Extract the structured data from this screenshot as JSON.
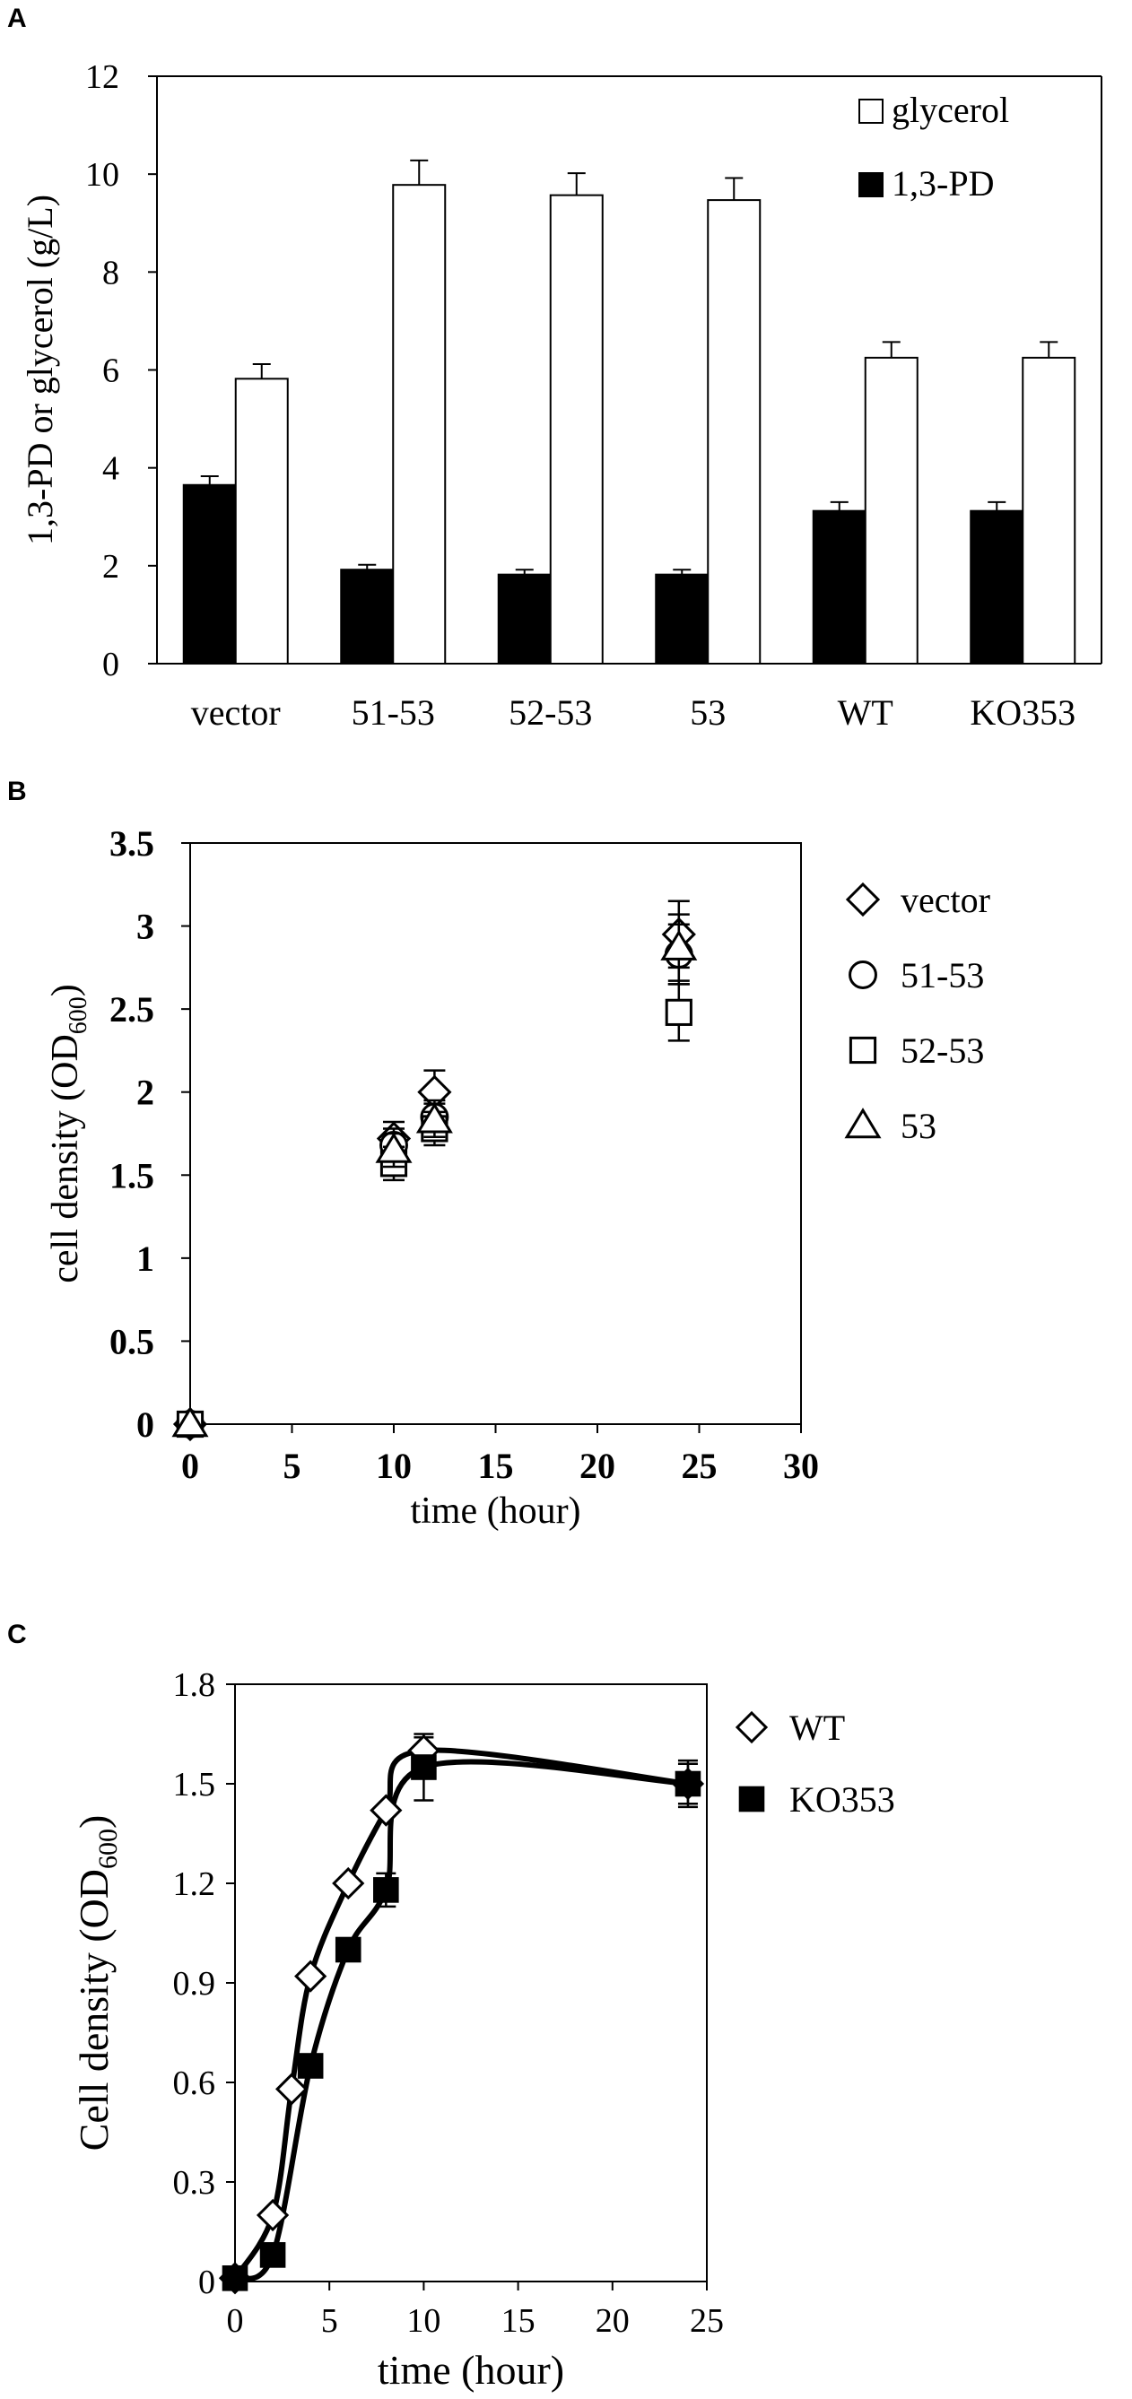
{
  "chart_data": [
    {
      "panel": "A",
      "type": "bar",
      "ylabel": "1,3-PD or glycerol (g/L)",
      "xlabel": "",
      "ylim": [
        0,
        12
      ],
      "yticks": [
        0,
        2,
        4,
        6,
        8,
        10,
        12
      ],
      "categories": [
        "vector",
        "51-53",
        "52-53",
        "53",
        "WT",
        "KO353"
      ],
      "series": [
        {
          "name": "1,3-PD",
          "color": "#000000",
          "fill": "#000000",
          "values": [
            3.65,
            1.92,
            1.82,
            1.82,
            3.12,
            3.12
          ],
          "errors": [
            0.18,
            0.1,
            0.1,
            0.1,
            0.18,
            0.18
          ]
        },
        {
          "name": "glycerol",
          "color": "#000000",
          "fill": "#ffffff",
          "values": [
            5.82,
            9.78,
            9.57,
            9.47,
            6.25,
            6.25
          ],
          "errors": [
            0.3,
            0.5,
            0.45,
            0.45,
            0.32,
            0.32
          ]
        }
      ],
      "legend": "top-right",
      "grid": false
    },
    {
      "panel": "B",
      "type": "scatter",
      "xlabel": "time (hour)",
      "ylabel_main": "cell density (OD",
      "ylabel_sub": "600",
      "ylabel_end": ")",
      "xlim": [
        0,
        30
      ],
      "ylim": [
        0,
        3.5
      ],
      "xticks": [
        0,
        5,
        10,
        15,
        20,
        25,
        30
      ],
      "yticks": [
        0,
        0.5,
        1,
        1.5,
        2,
        2.5,
        3,
        3.5
      ],
      "ytick_labels": [
        "0",
        "0.5",
        "1",
        "1.5",
        "2",
        "2.5",
        "3",
        "3.5"
      ],
      "series": [
        {
          "name": "vector",
          "marker": "diamond",
          "x": [
            0,
            10,
            12,
            24
          ],
          "y": [
            0,
            1.72,
            2.0,
            2.95
          ],
          "errors": [
            0,
            0.1,
            0.13,
            0.2
          ]
        },
        {
          "name": "51-53",
          "marker": "circle",
          "x": [
            0,
            10,
            12,
            24
          ],
          "y": [
            0,
            1.68,
            1.85,
            2.83
          ],
          "errors": [
            0,
            0.1,
            0.1,
            0.18
          ]
        },
        {
          "name": "52-53",
          "marker": "square",
          "x": [
            0,
            10,
            12,
            24
          ],
          "y": [
            0,
            1.57,
            1.78,
            2.48
          ],
          "errors": [
            0,
            0.1,
            0.1,
            0.17
          ]
        },
        {
          "name": "53",
          "marker": "triangle",
          "x": [
            0,
            10,
            12,
            24
          ],
          "y": [
            0,
            1.65,
            1.83,
            2.87
          ],
          "errors": [
            0,
            0.1,
            0.1,
            0.2
          ]
        }
      ],
      "legend": "right",
      "grid": false
    },
    {
      "panel": "C",
      "type": "line",
      "xlabel": "time (hour)",
      "ylabel_main": "Cell density (OD",
      "ylabel_sub": "600",
      "ylabel_end": ")",
      "xlim": [
        0,
        25
      ],
      "ylim": [
        0,
        1.8
      ],
      "xticks": [
        0,
        5,
        10,
        15,
        20,
        25
      ],
      "yticks": [
        0,
        0.3,
        0.6,
        0.9,
        1.2,
        1.5,
        1.8
      ],
      "ytick_labels": [
        "0",
        "0.3",
        "0.6",
        "0.9",
        "1.2",
        "1.5",
        "1.8"
      ],
      "series": [
        {
          "name": "WT",
          "marker": "diamond",
          "x": [
            0,
            2,
            3,
            4,
            6,
            8,
            10,
            24
          ],
          "y": [
            0.01,
            0.2,
            0.58,
            0.92,
            1.2,
            1.42,
            1.6,
            1.5
          ],
          "errors": [
            0,
            0,
            0,
            0,
            0,
            0,
            0.04,
            0.06
          ]
        },
        {
          "name": "KO353",
          "marker": "filled-square",
          "x": [
            0,
            2,
            4,
            6,
            8,
            10,
            24
          ],
          "y": [
            0.01,
            0.08,
            0.65,
            1.0,
            1.18,
            1.55,
            1.5
          ],
          "errors": [
            0,
            0,
            0,
            0,
            0.05,
            0.1,
            0.07
          ]
        }
      ],
      "legend": "right",
      "grid": false
    }
  ],
  "panel_labels": [
    "A",
    "B",
    "C"
  ]
}
